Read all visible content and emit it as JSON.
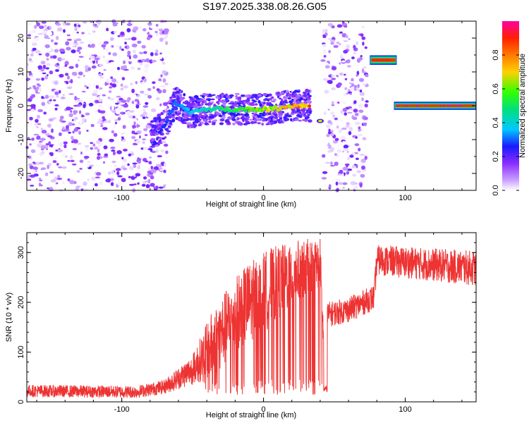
{
  "title": "S197.2025.338.08.26.G05",
  "colors": {
    "snr_line": "#ee3333",
    "axis": "#000000",
    "background": "#ffffff",
    "colorbar": [
      "#ffffff",
      "#d8b6ff",
      "#9a3cff",
      "#6a00e6",
      "#1a1aff",
      "#00c8ff",
      "#00e07a",
      "#33ff00",
      "#ffd000",
      "#ff7a00",
      "#ff2000",
      "#ff00a0"
    ]
  },
  "chart_data": [
    {
      "type": "heatmap",
      "name": "spectrogram",
      "xlabel": "Height of straight line (km)",
      "ylabel": "Frequency (Hz)",
      "xlim": [
        -167,
        150
      ],
      "ylim": [
        -25,
        25
      ],
      "xticks": [
        -100,
        0,
        100
      ],
      "xtick_labels": [
        "-100",
        "0",
        "100"
      ],
      "yticks": [
        -20,
        -10,
        0,
        10,
        20
      ],
      "ytick_labels": [
        "-20",
        "-10",
        "0",
        "10",
        "20"
      ],
      "colorbar": {
        "label": "Normalized spectral amplitude",
        "range": [
          0.0,
          1.0
        ],
        "ticks": [
          0.0,
          0.2,
          0.4,
          0.6,
          0.8
        ],
        "tick_labels": [
          "0.0",
          "0.2",
          "0.4",
          "0.6",
          "0.8"
        ]
      },
      "regions": [
        {
          "kind": "noise",
          "x": [
            -167,
            -68
          ],
          "y": [
            -25,
            25
          ]
        },
        {
          "kind": "ridge",
          "points": [
            [
              -80,
              -9
            ],
            [
              -70,
              -6
            ],
            [
              -62,
              1
            ],
            [
              -52,
              -2
            ],
            [
              -40,
              -1
            ],
            [
              -25,
              -1
            ],
            [
              -10,
              -1
            ],
            [
              5,
              -1
            ],
            [
              20,
              0
            ],
            [
              33,
              0
            ]
          ],
          "peak": 0.9
        },
        {
          "kind": "spot",
          "x": 40,
          "y": -4.5,
          "peak": 0.7
        },
        {
          "kind": "noise",
          "x": [
            42,
            73
          ],
          "y": [
            -25,
            25
          ]
        },
        {
          "kind": "bar",
          "x": [
            75,
            94
          ],
          "y": [
            12.5,
            14.5
          ],
          "peak": 0.9
        },
        {
          "kind": "bar",
          "x": [
            92,
            150
          ],
          "y": [
            -0.8,
            0.8
          ],
          "peak": 1.0
        }
      ]
    },
    {
      "type": "line",
      "name": "snr",
      "xlabel": "Height of straight line (km)",
      "ylabel": "SNR (10 * v/v)",
      "xlim": [
        -167,
        150
      ],
      "ylim": [
        0,
        340
      ],
      "xticks": [
        -100,
        0,
        100
      ],
      "xtick_labels": [
        "-100",
        "0",
        "100"
      ],
      "yticks": [
        0,
        100,
        200,
        300
      ],
      "ytick_labels": [
        "0",
        "100",
        "200",
        "300"
      ],
      "envelope": [
        {
          "x": -167,
          "base": 22,
          "amp": 12,
          "dip": 0
        },
        {
          "x": -90,
          "base": 20,
          "amp": 12,
          "dip": 0
        },
        {
          "x": -70,
          "base": 30,
          "amp": 14,
          "dip": 0
        },
        {
          "x": -50,
          "base": 65,
          "amp": 30,
          "dip": 0
        },
        {
          "x": -35,
          "base": 120,
          "amp": 70,
          "dip": 0.35
        },
        {
          "x": -15,
          "base": 190,
          "amp": 80,
          "dip": 0.4
        },
        {
          "x": 5,
          "base": 230,
          "amp": 80,
          "dip": 0.45
        },
        {
          "x": 25,
          "base": 265,
          "amp": 60,
          "dip": 0.5
        },
        {
          "x": 40,
          "base": 280,
          "amp": 50,
          "dip": 0.45
        },
        {
          "x": 44,
          "base": 25,
          "amp": 8,
          "dip": 0
        },
        {
          "x": 45,
          "base": 175,
          "amp": 25,
          "dip": 0
        },
        {
          "x": 60,
          "base": 185,
          "amp": 25,
          "dip": 0
        },
        {
          "x": 78,
          "base": 210,
          "amp": 25,
          "dip": 0
        },
        {
          "x": 80,
          "base": 285,
          "amp": 30,
          "dip": 0
        },
        {
          "x": 150,
          "base": 268,
          "amp": 35,
          "dip": 0
        }
      ]
    }
  ]
}
